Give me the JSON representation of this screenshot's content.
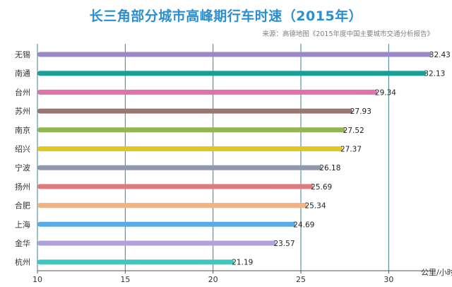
{
  "chart_data": {
    "type": "bar",
    "orientation": "horizontal",
    "title": "长三角部分城市高峰期行车时速（2015年）",
    "subtitle": "来源：高德地图《2015年度中国主要城市交通分析报告》",
    "categories": [
      "无锡",
      "南通",
      "台州",
      "苏州",
      "南京",
      "绍兴",
      "宁波",
      "扬州",
      "合肥",
      "上海",
      "金华",
      "杭州"
    ],
    "values": [
      32.43,
      32.13,
      29.34,
      27.93,
      27.52,
      27.37,
      26.18,
      25.69,
      25.34,
      24.69,
      23.57,
      21.19
    ],
    "value_labels": [
      "32.43",
      "32.13",
      "29.34",
      "27.93",
      "27.52",
      "27.37",
      "26.18",
      "25.69",
      "25.34",
      "24.69",
      "23.57",
      "21.19"
    ],
    "colors": [
      "#9b87c9",
      "#1a9e96",
      "#df72ab",
      "#9a7670",
      "#95b552",
      "#e0c81e",
      "#8f98ac",
      "#dd7b80",
      "#f3b27e",
      "#5aace6",
      "#b1a0d9",
      "#3ec6c1"
    ],
    "xlim": [
      10,
      32.6
    ],
    "x_ticks": [
      10,
      15,
      20,
      25,
      30
    ],
    "x_tick_labels": [
      "10",
      "15",
      "20",
      "25",
      "30"
    ],
    "xlabel": "公里/小时",
    "grid": "vertical",
    "gridline_color": "#3d7f90"
  }
}
